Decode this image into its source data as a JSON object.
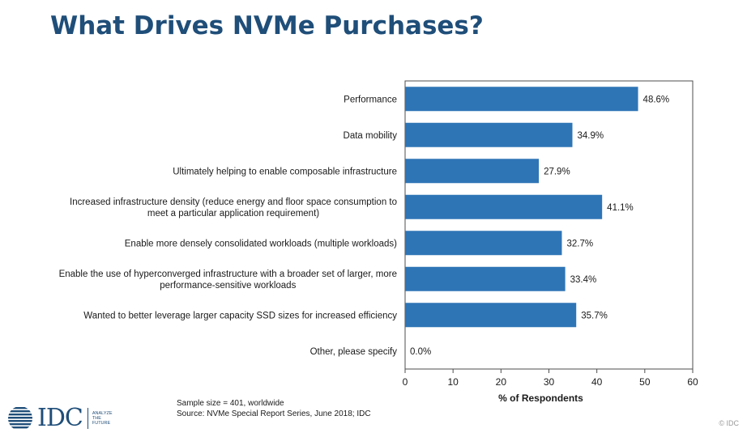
{
  "title": "What Drives NVMe Purchases?",
  "chart_data": {
    "type": "bar",
    "orientation": "horizontal",
    "categories": [
      [
        "Performance"
      ],
      [
        "Data mobility"
      ],
      [
        "Ultimately helping to enable composable infrastructure"
      ],
      [
        "Increased infrastructure density (reduce energy and floor space consumption to",
        "meet a particular application requirement)"
      ],
      [
        "Enable more densely consolidated workloads (multiple workloads)"
      ],
      [
        "Enable the use of hyperconverged infrastructure with a broader set of larger, more",
        "performance-sensitive workloads"
      ],
      [
        "Wanted to better leverage larger capacity SSD sizes for increased efficiency"
      ],
      [
        "Other, please specify"
      ]
    ],
    "values": [
      48.6,
      34.9,
      27.9,
      41.1,
      32.7,
      33.4,
      35.7,
      0.0
    ],
    "value_labels": [
      "48.6%",
      "34.9%",
      "27.9%",
      "41.1%",
      "32.7%",
      "33.4%",
      "35.7%",
      "0.0%"
    ],
    "xlabel": "% of Respondents",
    "xlim": [
      0,
      60
    ],
    "xticks": [
      0,
      10,
      20,
      30,
      40,
      50,
      60
    ],
    "bar_color": "#2e75b6",
    "grid": false
  },
  "notes": {
    "sample": "Sample size = 401, worldwide",
    "source": "Source:  NVMe Special Report Series, June 2018; IDC"
  },
  "logo": {
    "name": "IDC",
    "tagline": [
      "ANALYZE",
      "THE",
      "FUTURE"
    ]
  },
  "copyright": "© IDC"
}
